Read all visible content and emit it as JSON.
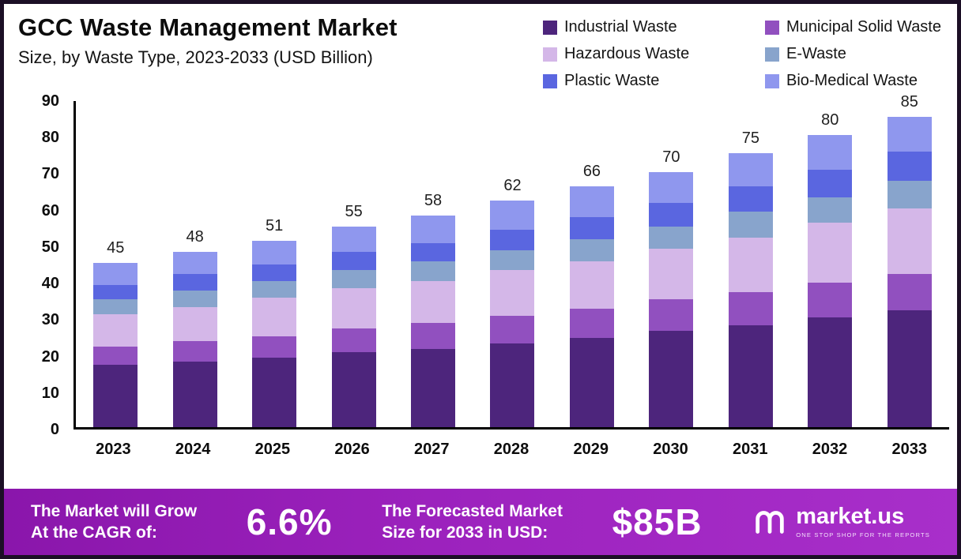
{
  "header": {
    "title": "GCC Waste Management Market",
    "subtitle": "Size, by Waste Type, 2023-2033 (USD Billion)"
  },
  "chart_data": {
    "type": "bar",
    "stacked": true,
    "title": "GCC Waste Management Market Size, by Waste Type, 2023-2033 (USD Billion)",
    "xlabel": "",
    "ylabel": "USD Billion",
    "ylim": [
      0,
      90
    ],
    "yticks": [
      0,
      10,
      20,
      30,
      40,
      50,
      60,
      70,
      80,
      90
    ],
    "grid": false,
    "legend_position": "top-right",
    "categories": [
      "2023",
      "2024",
      "2025",
      "2026",
      "2027",
      "2028",
      "2029",
      "2030",
      "2031",
      "2032",
      "2033"
    ],
    "totals": [
      45,
      48,
      51,
      55,
      58,
      62,
      66,
      70,
      75,
      80,
      85
    ],
    "series": [
      {
        "name": "Industrial Waste",
        "color": "#4d257c",
        "values": [
          17,
          18,
          19,
          20.5,
          21.5,
          23,
          24.5,
          26.5,
          28,
          30,
          32
        ]
      },
      {
        "name": "Municipal Solid Waste",
        "color": "#9150bf",
        "values": [
          5,
          5.5,
          6,
          6.5,
          7,
          7.5,
          8,
          8.5,
          9,
          9.5,
          10
        ]
      },
      {
        "name": "Hazardous Waste",
        "color": "#d4b7e8",
        "values": [
          9,
          9.5,
          10.5,
          11,
          11.5,
          12.5,
          13,
          14,
          15,
          16.5,
          18
        ]
      },
      {
        "name": "E-Waste",
        "color": "#88a4cc",
        "values": [
          4,
          4.5,
          4.5,
          5,
          5.5,
          5.5,
          6,
          6,
          7,
          7,
          7.5
        ]
      },
      {
        "name": "Plastic Waste",
        "color": "#5a66e0",
        "values": [
          4,
          4.5,
          4.5,
          5,
          5,
          5.5,
          6,
          6.5,
          7,
          7.5,
          8
        ]
      },
      {
        "name": "Bio-Medical Waste",
        "color": "#8f97ee",
        "values": [
          6,
          6,
          6.5,
          7,
          7.5,
          8,
          8.5,
          8.5,
          9,
          9.5,
          9.5
        ]
      }
    ]
  },
  "banner": {
    "cagr_label": "The Market will Grow\nAt the CAGR of:",
    "cagr_value": "6.6%",
    "forecast_label": "The Forecasted Market\nSize for 2033 in USD:",
    "forecast_value": "$85B",
    "logo_text": "market.us",
    "logo_tagline": "ONE STOP SHOP FOR THE REPORTS"
  },
  "colors": {
    "banner_gradient_start": "#8a16ab",
    "banner_gradient_end": "#a82fca",
    "frame_border": "#1c0f26",
    "axis": "#000000",
    "text": "#111111"
  }
}
